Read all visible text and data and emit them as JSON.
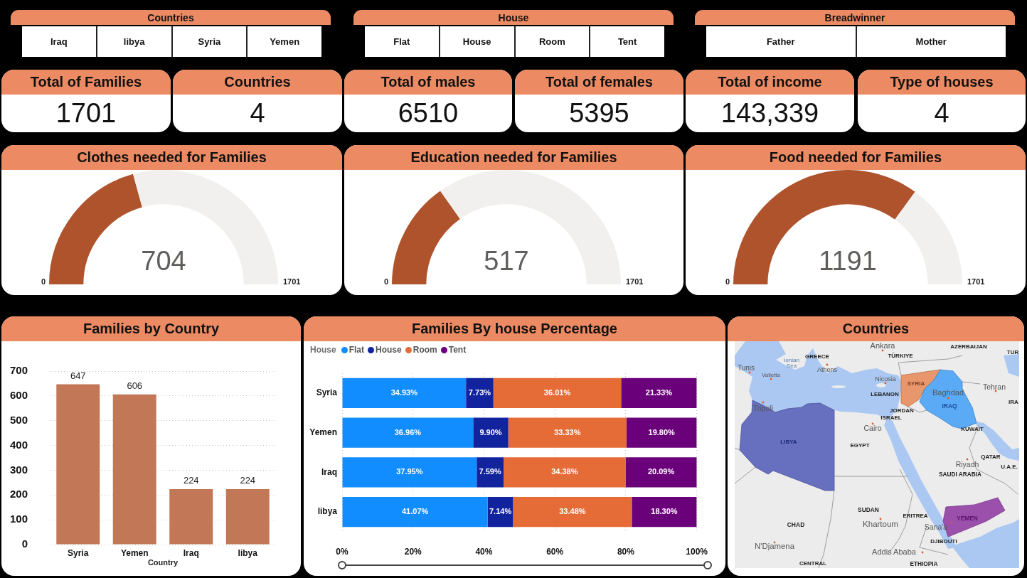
{
  "chart_data": [
    {
      "type": "other",
      "title": "Countries",
      "categories": [
        "Iraq",
        "libya",
        "Syria",
        "Yemen"
      ]
    },
    {
      "type": "other",
      "title": "House",
      "categories": [
        "Flat",
        "House",
        "Room",
        "Tent"
      ]
    },
    {
      "type": "other",
      "title": "Breadwinner",
      "categories": [
        "Father",
        "Mother"
      ]
    },
    {
      "type": "other",
      "title": "Total of Families",
      "values": [
        1701
      ],
      "data_labels": true
    },
    {
      "type": "other",
      "title": "Countries",
      "values": [
        4
      ],
      "data_labels": true
    },
    {
      "type": "other",
      "title": "Total of males",
      "values": [
        6510
      ],
      "data_labels": true
    },
    {
      "type": "other",
      "title": "Total of females",
      "values": [
        5395
      ],
      "data_labels": true
    },
    {
      "type": "other",
      "title": "Total of income",
      "values": [
        143339
      ],
      "value_labels": [
        "143,339"
      ]
    },
    {
      "type": "other",
      "title": "Type of houses",
      "values": [
        4
      ],
      "data_labels": true
    },
    {
      "type": "donut",
      "title": "Clothes needed for Families",
      "categories": [
        null,
        null
      ],
      "values": [
        41.4,
        58.6
      ],
      "colors": [
        "#ae532b",
        "#f1f0ef"
      ],
      "annotations": [
        "0",
        "1701",
        "704"
      ]
    },
    {
      "type": "donut",
      "title": "Education needed for Families",
      "categories": [
        null,
        null
      ],
      "values": [
        30.4,
        69.6
      ],
      "colors": [
        "#ae532b",
        "#f1f0ef"
      ],
      "annotations": [
        "0",
        "1701",
        "517"
      ]
    },
    {
      "type": "donut",
      "title": "Food needed for Families",
      "categories": [
        null,
        null
      ],
      "values": [
        70.0,
        30.0
      ],
      "colors": [
        "#ae532b",
        "#f1f0ef"
      ],
      "annotations": [
        "0",
        "1701",
        "1191"
      ]
    },
    {
      "type": "bar",
      "title": "Families by Country",
      "xlabel": "Country",
      "categories": [
        "Syria",
        "Yemen",
        "Iraq",
        "libya"
      ],
      "values": [
        647,
        606,
        224,
        224
      ],
      "color": "#c27857",
      "ylim": [
        0,
        700
      ],
      "yticks": [
        0,
        100,
        200,
        300,
        400,
        500,
        600,
        700
      ],
      "grid": "y",
      "data_labels": true
    },
    {
      "type": "bar",
      "title": "Families By house Percentage",
      "orientation": "horizontal",
      "stacked": true,
      "categories": [
        "Syria",
        "Yemen",
        "Iraq",
        "libya"
      ],
      "series": [
        {
          "name": "Flat",
          "color": "#118dff",
          "values": [
            34.93,
            36.96,
            37.95,
            41.07
          ],
          "value_labels": [
            "34.93%",
            "36.96%",
            "37.95%",
            "41.07%"
          ]
        },
        {
          "name": "House",
          "color": "#12239e",
          "values": [
            7.73,
            9.9,
            7.59,
            7.14
          ],
          "value_labels": [
            "7.73%",
            "9.90%",
            "7.59%",
            "7.14%"
          ]
        },
        {
          "name": "Room",
          "color": "#e66c37",
          "values": [
            36.01,
            33.33,
            34.38,
            33.48
          ],
          "value_labels": [
            "36.01%",
            "33.33%",
            "34.38%",
            "33.48%"
          ]
        },
        {
          "name": "Tent",
          "color": "#6b007b",
          "values": [
            21.33,
            19.8,
            20.09,
            18.3
          ],
          "value_labels": [
            "21.33%",
            "19.80%",
            "20.09%",
            "18.30%"
          ]
        }
      ],
      "xlim": [
        0,
        100
      ],
      "xticks": [
        {
          "value": 0,
          "label": "0%"
        },
        {
          "value": 20,
          "label": "20%"
        },
        {
          "value": 40,
          "label": "40%"
        },
        {
          "value": 60,
          "label": "60%"
        },
        {
          "value": 80,
          "label": "80%"
        },
        {
          "value": 100,
          "label": "100%"
        }
      ],
      "grid": "x",
      "legend": "top left",
      "legend_title": "House"
    },
    {
      "type": "other",
      "title": "Countries",
      "annotations": [
        "Ankara",
        "AZERBAIJAN",
        "TUR",
        "TÜRKIYE",
        "GREECE",
        "Ionian Sea",
        "Tunis",
        "Athens",
        "Valletta",
        "Nicosia",
        "SYRIA",
        "Tehran",
        "Baghdad",
        "LEBANON",
        "IRA",
        "IRAQ",
        "Tripoli",
        "JORDAN",
        "ISRAEL",
        "Cairo",
        "KUWAIT",
        "LIBYA",
        "EGYPT",
        "QATAR",
        "Riyadh",
        "U.A.E.",
        "SAUDI ARABIA",
        "SUDAN",
        "ERITREA",
        "YEMEN",
        "CHAD",
        "Khartoum",
        "Sana'a",
        "DJIBOUTI",
        "N'Djamena",
        "Addis Ababa",
        "CENTRAL",
        "ETHIOPIA"
      ]
    }
  ]
}
